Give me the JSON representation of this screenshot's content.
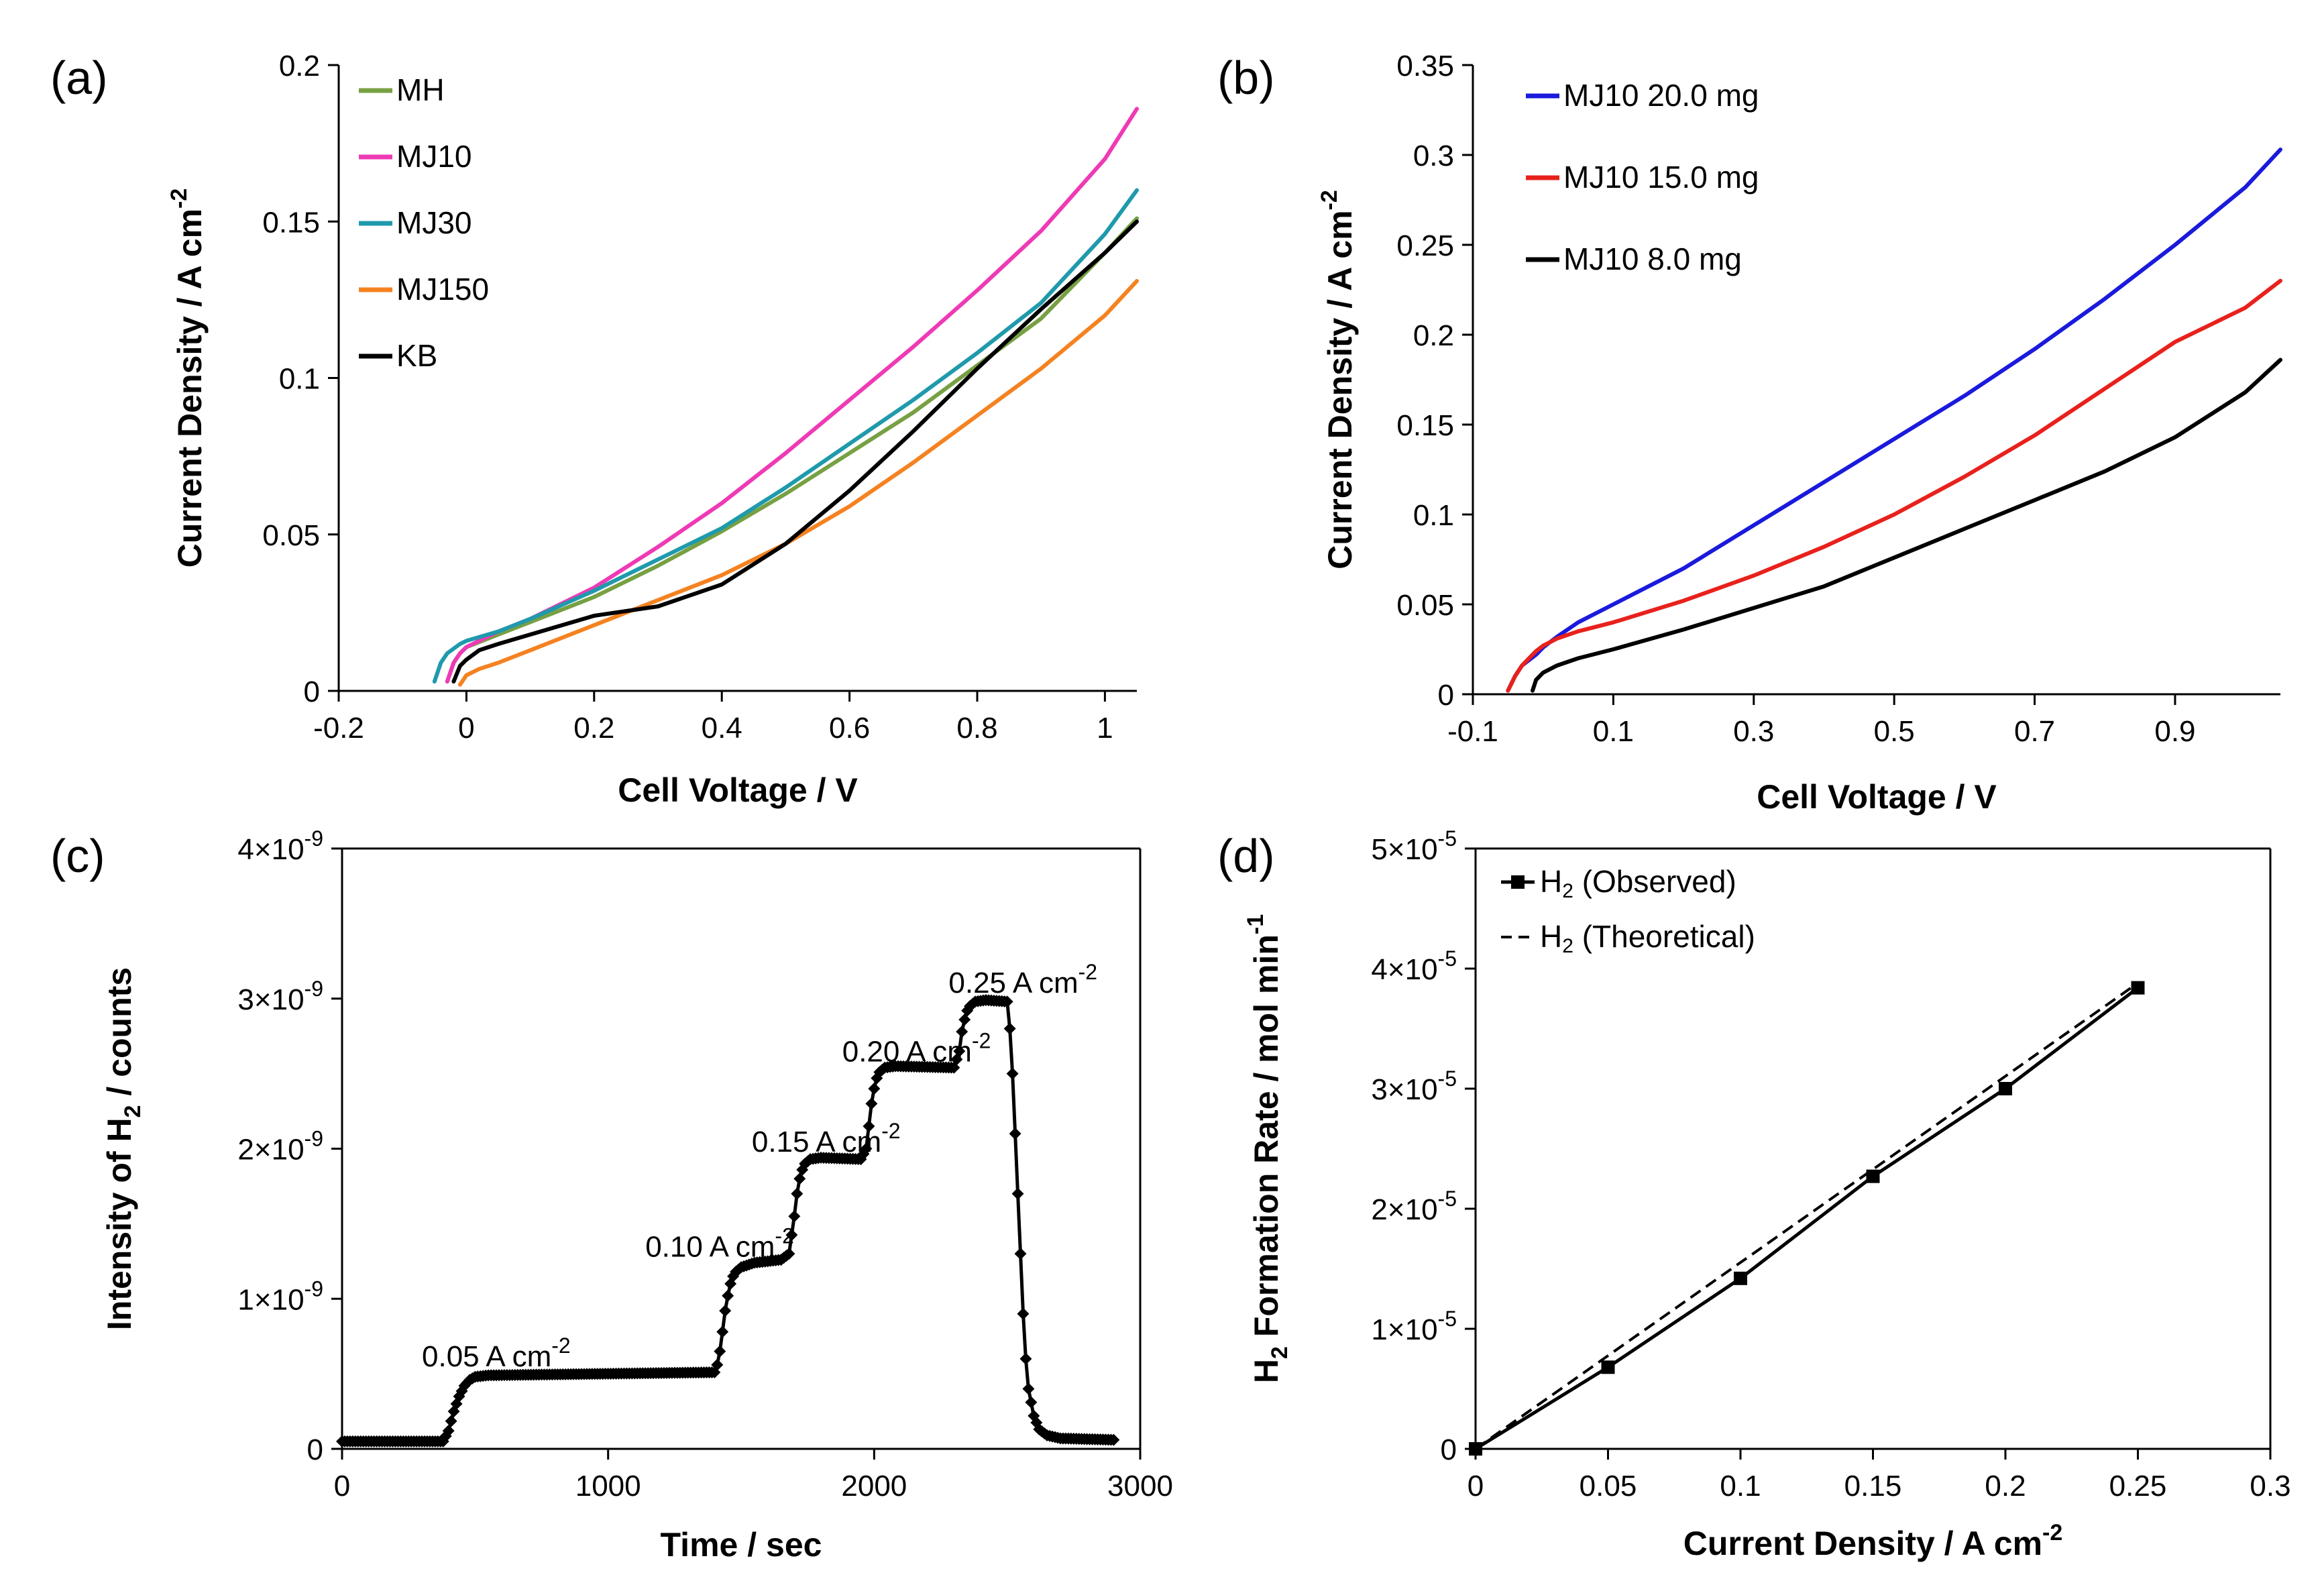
{
  "chart_data": [
    {
      "panel": "(a)",
      "type": "line",
      "xlabel": "Cell Voltage / V",
      "ylabel": "Current Density / A cm",
      "ylabel_sup": "-2",
      "xlim": [
        -0.2,
        1.05
      ],
      "ylim": [
        0,
        0.2
      ],
      "xticks": [
        "-0.2",
        "0",
        "0.2",
        "0.4",
        "0.6",
        "0.8",
        "1"
      ],
      "xtick_values": [
        -0.2,
        0,
        0.2,
        0.4,
        0.6,
        0.8,
        1.0
      ],
      "yticks": [
        "0",
        "0.05",
        "0.1",
        "0.15",
        "0.2"
      ],
      "ytick_values": [
        0,
        0.05,
        0.1,
        0.15,
        0.2
      ],
      "legend": "top-left",
      "series": [
        {
          "name": "MH",
          "color": "#77a043",
          "x": [
            -0.03,
            -0.02,
            -0.01,
            0,
            0.05,
            0.1,
            0.2,
            0.3,
            0.4,
            0.5,
            0.6,
            0.7,
            0.8,
            0.9,
            1.0,
            1.05
          ],
          "y": [
            0.003,
            0.009,
            0.012,
            0.014,
            0.018,
            0.022,
            0.03,
            0.04,
            0.051,
            0.063,
            0.076,
            0.089,
            0.104,
            0.119,
            0.14,
            0.151
          ]
        },
        {
          "name": "MJ10",
          "color": "#ee3ab5",
          "x": [
            -0.03,
            -0.02,
            -0.01,
            0,
            0.05,
            0.1,
            0.2,
            0.3,
            0.4,
            0.5,
            0.6,
            0.7,
            0.8,
            0.9,
            1.0,
            1.05
          ],
          "y": [
            0.003,
            0.009,
            0.012,
            0.014,
            0.019,
            0.023,
            0.033,
            0.046,
            0.06,
            0.076,
            0.093,
            0.11,
            0.128,
            0.147,
            0.17,
            0.186
          ]
        },
        {
          "name": "MJ30",
          "color": "#1f9aac",
          "x": [
            -0.05,
            -0.04,
            -0.03,
            -0.01,
            0,
            0.05,
            0.1,
            0.2,
            0.3,
            0.4,
            0.5,
            0.6,
            0.7,
            0.8,
            0.9,
            1.0,
            1.05
          ],
          "y": [
            0.003,
            0.009,
            0.012,
            0.015,
            0.016,
            0.019,
            0.023,
            0.032,
            0.042,
            0.052,
            0.065,
            0.079,
            0.093,
            0.108,
            0.124,
            0.146,
            0.16
          ]
        },
        {
          "name": "MJ150",
          "color": "#f58220",
          "x": [
            -0.01,
            0,
            0.02,
            0.05,
            0.1,
            0.2,
            0.3,
            0.4,
            0.5,
            0.6,
            0.7,
            0.8,
            0.9,
            1.0,
            1.05
          ],
          "y": [
            0.002,
            0.005,
            0.007,
            0.009,
            0.013,
            0.021,
            0.029,
            0.037,
            0.047,
            0.059,
            0.073,
            0.088,
            0.103,
            0.12,
            0.131
          ]
        },
        {
          "name": "KB",
          "color": "#000000",
          "x": [
            -0.02,
            -0.01,
            0,
            0.02,
            0.05,
            0.1,
            0.2,
            0.3,
            0.4,
            0.5,
            0.6,
            0.7,
            0.8,
            0.9,
            1.0,
            1.05
          ],
          "y": [
            0.003,
            0.008,
            0.01,
            0.013,
            0.015,
            0.018,
            0.024,
            0.027,
            0.034,
            0.047,
            0.064,
            0.083,
            0.103,
            0.122,
            0.14,
            0.15
          ]
        }
      ]
    },
    {
      "panel": "(b)",
      "type": "line",
      "xlabel": "Cell Voltage / V",
      "ylabel": "Current Density / A cm",
      "ylabel_sup": "-2",
      "xlim": [
        -0.1,
        1.05
      ],
      "ylim": [
        0,
        0.35
      ],
      "xticks": [
        "-0.1",
        "0.1",
        "0.3",
        "0.5",
        "0.7",
        "0.9"
      ],
      "xtick_values": [
        -0.1,
        0.1,
        0.3,
        0.5,
        0.7,
        0.9
      ],
      "yticks": [
        "0",
        "0.05",
        "0.1",
        "0.15",
        "0.2",
        "0.25",
        "0.3",
        "0.35"
      ],
      "ytick_values": [
        0,
        0.05,
        0.1,
        0.15,
        0.2,
        0.25,
        0.3,
        0.35
      ],
      "legend": "top-left",
      "series": [
        {
          "name": "MJ10  20.0 mg",
          "color": "#1a1adc",
          "x": [
            -0.05,
            -0.04,
            -0.03,
            -0.01,
            0,
            0.02,
            0.05,
            0.1,
            0.2,
            0.3,
            0.4,
            0.5,
            0.6,
            0.7,
            0.8,
            0.9,
            1.0,
            1.05
          ],
          "y": [
            0.002,
            0.01,
            0.016,
            0.022,
            0.026,
            0.032,
            0.04,
            0.05,
            0.07,
            0.094,
            0.118,
            0.142,
            0.166,
            0.192,
            0.22,
            0.25,
            0.282,
            0.303
          ]
        },
        {
          "name": "MJ10  15.0 mg",
          "color": "#e8211c",
          "x": [
            -0.05,
            -0.04,
            -0.03,
            -0.01,
            0,
            0.02,
            0.05,
            0.1,
            0.2,
            0.3,
            0.4,
            0.5,
            0.6,
            0.7,
            0.8,
            0.9,
            1.0,
            1.05
          ],
          "y": [
            0.002,
            0.01,
            0.016,
            0.024,
            0.027,
            0.031,
            0.035,
            0.04,
            0.052,
            0.066,
            0.082,
            0.1,
            0.121,
            0.144,
            0.17,
            0.196,
            0.215,
            0.23
          ]
        },
        {
          "name": "MJ10   8.0  mg",
          "color": "#000000",
          "x": [
            -0.015,
            -0.01,
            0,
            0.02,
            0.05,
            0.1,
            0.2,
            0.3,
            0.4,
            0.5,
            0.6,
            0.7,
            0.8,
            0.9,
            1.0,
            1.05
          ],
          "y": [
            0.002,
            0.008,
            0.012,
            0.016,
            0.02,
            0.025,
            0.036,
            0.048,
            0.06,
            0.076,
            0.092,
            0.108,
            0.124,
            0.143,
            0.168,
            0.186
          ]
        }
      ]
    },
    {
      "panel": "(c)",
      "type": "scatter",
      "xlabel": "Time / sec",
      "ylabel_pre": "Intensity of H",
      "ylabel_sub": "2",
      "ylabel_post": " / counts",
      "xlim": [
        0,
        3000
      ],
      "ylim": [
        0,
        4
      ],
      "yexp": "-9",
      "xticks": [
        "0",
        "1000",
        "2000",
        "3000"
      ],
      "xtick_values": [
        0,
        1000,
        2000,
        3000
      ],
      "yticks": [
        "0",
        "1",
        "2",
        "3",
        "4"
      ],
      "ytick_values": [
        0,
        1,
        2,
        3,
        4
      ],
      "series": [
        {
          "name": "H2 intensity",
          "color": "#000000",
          "x": [
            0,
            380,
            400,
            420,
            440,
            460,
            480,
            500,
            550,
            1400,
            1410,
            1420,
            1430,
            1440,
            1450,
            1460,
            1470,
            1480,
            1500,
            1550,
            1650,
            1680,
            1700,
            1710,
            1720,
            1730,
            1740,
            1760,
            1800,
            1950,
            1970,
            1980,
            1990,
            2000,
            2010,
            2020,
            2040,
            2080,
            2300,
            2320,
            2330,
            2340,
            2350,
            2360,
            2380,
            2420,
            2500,
            2510,
            2520,
            2530,
            2540,
            2550,
            2560,
            2570,
            2580,
            2600,
            2620,
            2650,
            2700,
            2900
          ],
          "y": [
            0.05,
            0.05,
            0.12,
            0.25,
            0.35,
            0.42,
            0.46,
            0.48,
            0.49,
            0.51,
            0.56,
            0.65,
            0.78,
            0.92,
            1.02,
            1.1,
            1.15,
            1.18,
            1.21,
            1.24,
            1.26,
            1.3,
            1.55,
            1.7,
            1.8,
            1.86,
            1.9,
            1.93,
            1.94,
            1.93,
            2.0,
            2.15,
            2.3,
            2.4,
            2.47,
            2.51,
            2.54,
            2.55,
            2.54,
            2.65,
            2.78,
            2.86,
            2.92,
            2.95,
            2.98,
            2.99,
            2.98,
            2.8,
            2.5,
            2.1,
            1.7,
            1.3,
            0.9,
            0.6,
            0.4,
            0.22,
            0.13,
            0.09,
            0.07,
            0.06
          ]
        }
      ],
      "annotations": [
        {
          "text": "0.05 A cm",
          "sup": "-2",
          "x": 300,
          "y": 0.55
        },
        {
          "text": "0.10 A cm",
          "sup": "-2",
          "x": 1140,
          "y": 1.28
        },
        {
          "text": "0.15 A cm",
          "sup": "-2",
          "x": 1540,
          "y": 1.98
        },
        {
          "text": "0.20 A cm",
          "sup": "-2",
          "x": 1880,
          "y": 2.58
        },
        {
          "text": "0.25 A cm",
          "sup": "-2",
          "x": 2280,
          "y": 3.04
        }
      ]
    },
    {
      "panel": "(d)",
      "type": "line",
      "xlabel": "Current Density / A cm",
      "xlabel_sup": "-2",
      "ylabel_pre": "H",
      "ylabel_sub": "2",
      "ylabel_post": " Formation Rate / mol min",
      "ylabel_sup": "-1",
      "xlim": [
        0,
        0.3
      ],
      "ylim": [
        0,
        5
      ],
      "yexp": "-5",
      "xticks": [
        "0",
        "0.05",
        "0.1",
        "0.15",
        "0.2",
        "0.25",
        "0.3"
      ],
      "xtick_values": [
        0,
        0.05,
        0.1,
        0.15,
        0.2,
        0.25,
        0.3
      ],
      "yticks": [
        "0",
        "1",
        "2",
        "3",
        "4",
        "5"
      ],
      "ytick_values": [
        0,
        1,
        2,
        3,
        4,
        5
      ],
      "legend": "top-left",
      "series": [
        {
          "name": "H",
          "name_sub": "2",
          "name_post": " (Observed)",
          "color": "#000000",
          "style": "solid",
          "marker": "square",
          "x": [
            0,
            0.05,
            0.1,
            0.15,
            0.2,
            0.25
          ],
          "y": [
            0,
            0.68,
            1.42,
            2.27,
            3.0,
            3.84
          ]
        },
        {
          "name": "H",
          "name_sub": "2",
          "name_post": " (Theoretical)",
          "color": "#000000",
          "style": "dashed",
          "marker": "none",
          "x": [
            0,
            0.25
          ],
          "y": [
            0,
            3.88
          ]
        }
      ]
    }
  ]
}
